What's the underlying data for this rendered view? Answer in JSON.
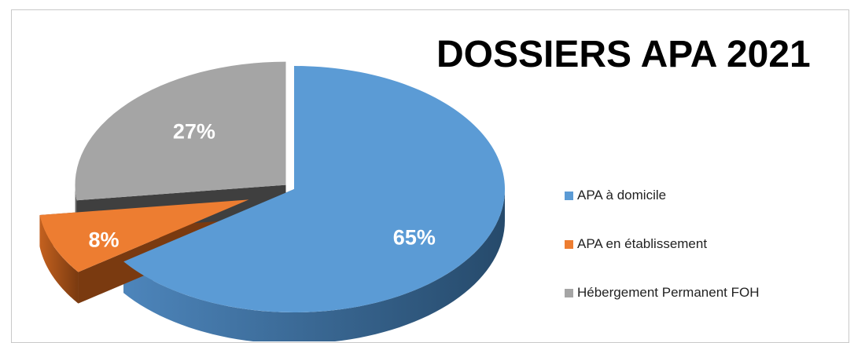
{
  "chart_data": {
    "type": "pie",
    "title": "DOSSIERS APA 2021",
    "slices": [
      {
        "name": "APA à domicile",
        "value": 65,
        "label": "65%",
        "color": "#5b9bd5",
        "side_dark": "#264a6b",
        "side_light": "#4d85bb"
      },
      {
        "name": "APA en établissement",
        "value": 8,
        "label": "8%",
        "color": "#ed7d31",
        "side_dark": "#7a3a10",
        "side_light": "#c4611f"
      },
      {
        "name": "Hébergement Permanent FOH",
        "value": 27,
        "label": "27%",
        "color": "#a5a5a5",
        "side_dark": "#3f3f3f",
        "side_light": "#8a8a8a"
      }
    ],
    "legend_position": "right",
    "style": "3d-exploded"
  }
}
